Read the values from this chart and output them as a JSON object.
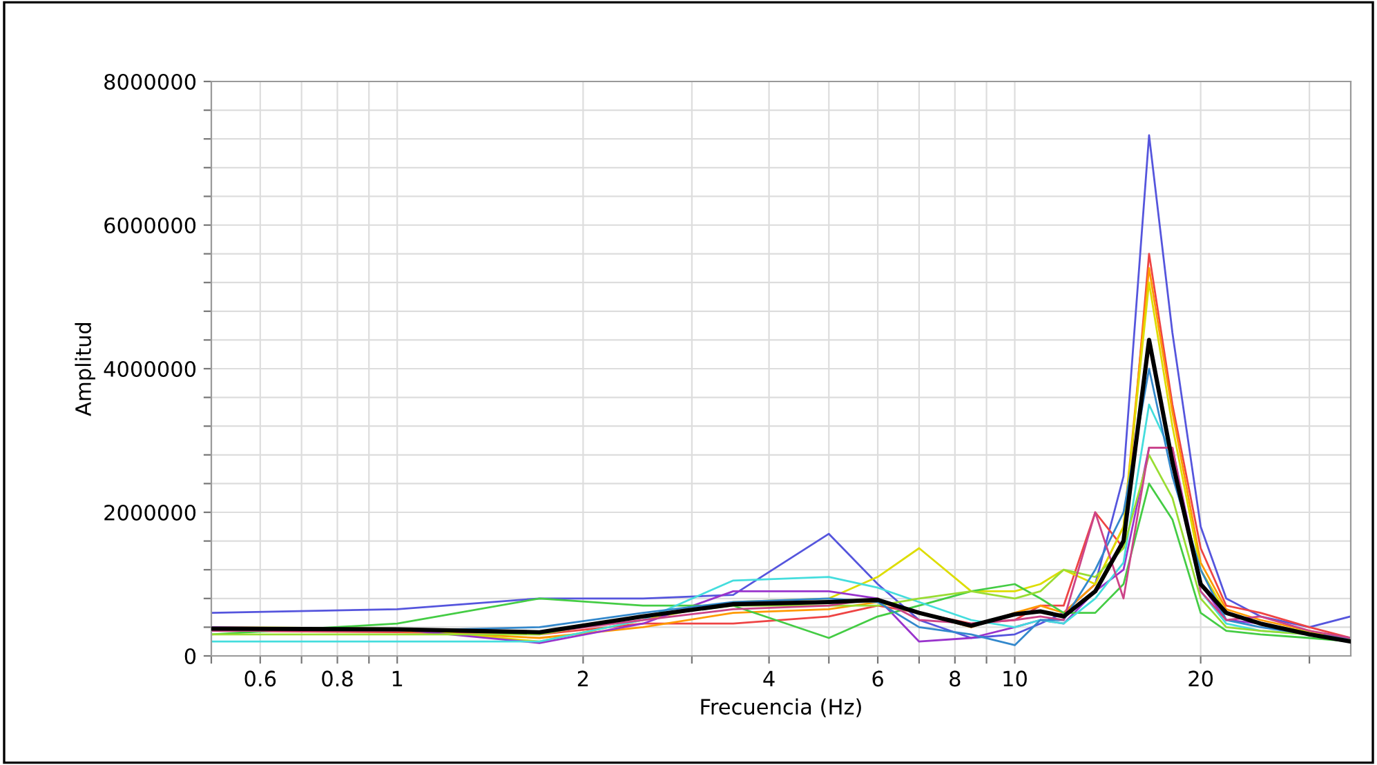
{
  "chart_data": {
    "type": "line",
    "xlabel": "Frecuencia (Hz)",
    "ylabel": "Amplitud",
    "log": "x",
    "grid": true,
    "line_style": "solid",
    "marker": "none",
    "x": [
      0.5,
      1.0,
      1.7,
      2.5,
      3.5,
      5,
      6,
      7,
      8.5,
      10,
      11,
      12,
      13.5,
      15,
      16.5,
      18,
      20,
      22,
      25,
      30,
      35
    ],
    "xlim": [
      0.5,
      35
    ],
    "xticks": [
      {
        "value": 0.5,
        "label": null
      },
      0.6,
      {
        "value": 0.7,
        "label": null
      },
      0.8,
      {
        "value": 0.9,
        "label": null
      },
      1,
      2,
      {
        "value": 3,
        "label": null
      },
      4,
      {
        "value": 5,
        "label": null
      },
      6,
      {
        "value": 7,
        "label": null
      },
      8,
      {
        "value": 9,
        "label": null
      },
      10,
      20,
      {
        "value": 30,
        "label": null
      }
    ],
    "ylim": [
      0,
      8000000
    ],
    "yticks": [
      0,
      {
        "value": 400000,
        "label": null
      },
      {
        "value": 800000,
        "label": null
      },
      {
        "value": 1200000,
        "label": null
      },
      {
        "value": 1600000,
        "label": null
      },
      2000000,
      {
        "value": 2400000,
        "label": null
      },
      {
        "value": 2800000,
        "label": null
      },
      {
        "value": 3200000,
        "label": null
      },
      {
        "value": 3600000,
        "label": null
      },
      4000000,
      {
        "value": 4400000,
        "label": null
      },
      {
        "value": 4800000,
        "label": null
      },
      {
        "value": 5200000,
        "label": null
      },
      {
        "value": 5600000,
        "label": null
      },
      6000000,
      {
        "value": 6400000,
        "label": null
      },
      {
        "value": 6800000,
        "label": null
      },
      {
        "value": 7200000,
        "label": null
      },
      {
        "value": 7600000,
        "label": null
      },
      8000000
    ],
    "series": [
      {
        "color": "#5555dd",
        "values": [
          600000,
          650000,
          800000,
          800000,
          850000,
          1700000,
          1000000,
          500000,
          250000,
          300000,
          450000,
          600000,
          1000000,
          2500000,
          7250000,
          4500000,
          1800000,
          800000,
          550000,
          400000,
          550000
        ]
      },
      {
        "color": "#ee4444",
        "values": [
          350000,
          330000,
          300000,
          450000,
          450000,
          550000,
          700000,
          600000,
          450000,
          500000,
          700000,
          700000,
          2000000,
          1500000,
          5600000,
          3500000,
          1500000,
          700000,
          600000,
          400000,
          250000
        ]
      },
      {
        "color": "#ff9900",
        "values": [
          380000,
          350000,
          250000,
          400000,
          600000,
          650000,
          750000,
          600000,
          400000,
          600000,
          700000,
          600000,
          1000000,
          1800000,
          5400000,
          3400000,
          1300000,
          650000,
          500000,
          350000,
          200000
        ]
      },
      {
        "color": "#dddd00",
        "values": [
          400000,
          380000,
          200000,
          500000,
          750000,
          800000,
          1100000,
          1500000,
          900000,
          900000,
          1000000,
          1200000,
          1000000,
          1800000,
          5200000,
          3200000,
          1200000,
          600000,
          450000,
          330000,
          240000
        ]
      },
      {
        "color": "#9933cc",
        "values": [
          400000,
          370000,
          180000,
          450000,
          900000,
          900000,
          800000,
          200000,
          250000,
          400000,
          500000,
          450000,
          900000,
          1200000,
          2900000,
          2900000,
          1000000,
          500000,
          450000,
          300000,
          250000
        ]
      },
      {
        "color": "#44cc44",
        "values": [
          300000,
          450000,
          800000,
          700000,
          700000,
          250000,
          550000,
          700000,
          900000,
          1000000,
          800000,
          600000,
          600000,
          1000000,
          2400000,
          1900000,
          600000,
          350000,
          300000,
          250000,
          200000
        ]
      },
      {
        "color": "#44dddd",
        "values": [
          200000,
          200000,
          200000,
          500000,
          1050000,
          1100000,
          950000,
          750000,
          500000,
          400000,
          500000,
          450000,
          800000,
          1300000,
          3500000,
          2800000,
          900000,
          450000,
          350000,
          300000,
          250000
        ]
      },
      {
        "color": "#99dd33",
        "values": [
          300000,
          300000,
          300000,
          550000,
          700000,
          700000,
          700000,
          800000,
          900000,
          800000,
          900000,
          1200000,
          1100000,
          1500000,
          2800000,
          2200000,
          800000,
          400000,
          350000,
          300000,
          200000
        ]
      },
      {
        "color": "#3388cc",
        "values": [
          350000,
          350000,
          400000,
          600000,
          750000,
          800000,
          750000,
          400000,
          300000,
          150000,
          500000,
          500000,
          1200000,
          2000000,
          4000000,
          2500000,
          1200000,
          500000,
          400000,
          300000,
          250000
        ]
      },
      {
        "color": "#cc4488",
        "values": [
          350000,
          350000,
          320000,
          500000,
          650000,
          700000,
          800000,
          500000,
          450000,
          500000,
          550000,
          500000,
          2000000,
          800000,
          2900000,
          2900000,
          900000,
          500000,
          550000,
          350000,
          250000
        ]
      },
      {
        "color": "#000000",
        "values": [
          380000,
          370000,
          330000,
          550000,
          720000,
          750000,
          780000,
          600000,
          420000,
          580000,
          620000,
          550000,
          900000,
          1600000,
          4400000,
          2700000,
          1000000,
          600000,
          450000,
          300000,
          200000
        ]
      }
    ]
  }
}
